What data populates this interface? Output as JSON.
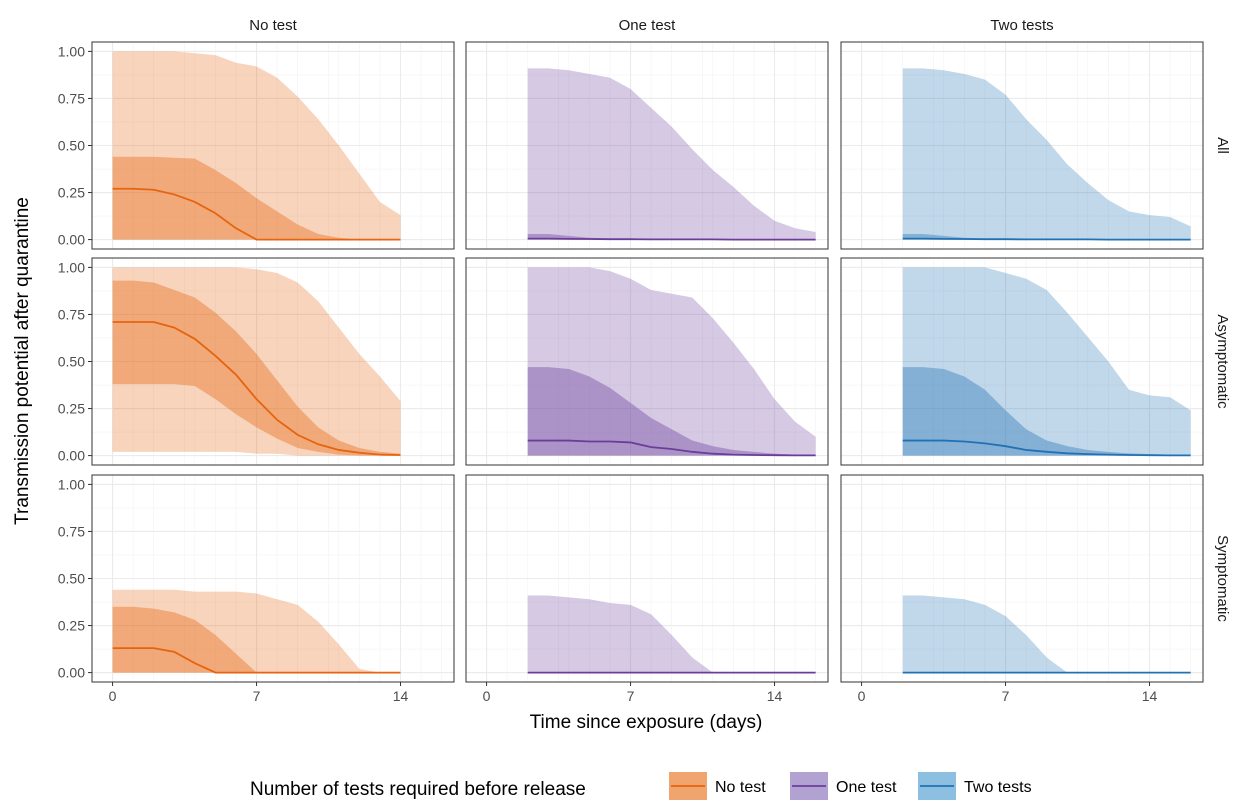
{
  "chart_data": {
    "type": "area",
    "xlabel": "Time since exposure (days)",
    "ylabel": "Transmission potential after quarantine",
    "xlim": [
      -1,
      16.6
    ],
    "ylim": [
      -0.05,
      1.05
    ],
    "x_ticks": [
      0,
      7,
      14
    ],
    "y_ticks": [
      0.0,
      0.25,
      0.5,
      0.75,
      1.0
    ],
    "y_tick_labels": [
      "0.00",
      "0.25",
      "0.50",
      "0.75",
      "1.00"
    ],
    "columns": [
      "No test",
      "One test",
      "Two tests"
    ],
    "rows": [
      "All",
      "Asymptomatic",
      "Symptomatic"
    ],
    "grid": true,
    "legend": {
      "title": "Number of tests required before release",
      "placement": "bottom",
      "entries": [
        {
          "label": "No test",
          "color": "#e6640e",
          "fill": "#f0a46e"
        },
        {
          "label": "One test",
          "color": "#6a3d9a",
          "fill": "#b2a2d2"
        },
        {
          "label": "Two tests",
          "color": "#2171b5",
          "fill": "#8cbfe0"
        }
      ]
    },
    "panels": [
      {
        "col": "No test",
        "row": "All",
        "x": [
          0,
          1,
          2,
          3,
          4,
          5,
          6,
          7,
          8,
          9,
          10,
          11,
          12,
          13,
          14
        ],
        "median": [
          0.27,
          0.27,
          0.265,
          0.24,
          0.2,
          0.14,
          0.06,
          0.0,
          0.0,
          0.0,
          0.0,
          0.0,
          0.0,
          0.0,
          0.0
        ],
        "inner_lo": [
          0,
          0,
          0,
          0,
          0,
          0,
          0,
          0,
          0,
          0,
          0,
          0,
          0,
          0,
          0
        ],
        "inner_hi": [
          0.44,
          0.44,
          0.44,
          0.435,
          0.43,
          0.37,
          0.3,
          0.22,
          0.15,
          0.08,
          0.03,
          0.01,
          0.0,
          0.0,
          0.0
        ],
        "outer_lo": [
          0,
          0,
          0,
          0,
          0,
          0,
          0,
          0,
          0,
          0,
          0,
          0,
          0,
          0,
          0
        ],
        "outer_hi": [
          1.0,
          1.0,
          1.0,
          1.0,
          0.99,
          0.98,
          0.94,
          0.92,
          0.86,
          0.76,
          0.64,
          0.5,
          0.35,
          0.2,
          0.13
        ]
      },
      {
        "col": "One test",
        "row": "All",
        "x": [
          2,
          3,
          4,
          5,
          6,
          7,
          8,
          9,
          10,
          11,
          12,
          13,
          14,
          15,
          16
        ],
        "median": [
          0.005,
          0.005,
          0.004,
          0.003,
          0.002,
          0.002,
          0.001,
          0.001,
          0.001,
          0.001,
          0.0,
          0.0,
          0.0,
          0.0,
          0.0
        ],
        "inner_lo": [
          0,
          0,
          0,
          0,
          0,
          0,
          0,
          0,
          0,
          0,
          0,
          0,
          0,
          0,
          0
        ],
        "inner_hi": [
          0.03,
          0.03,
          0.02,
          0.01,
          0.005,
          0.003,
          0.002,
          0.001,
          0.001,
          0.0,
          0.0,
          0.0,
          0.0,
          0.0,
          0.0
        ],
        "outer_lo": [
          0,
          0,
          0,
          0,
          0,
          0,
          0,
          0,
          0,
          0,
          0,
          0,
          0,
          0,
          0
        ],
        "outer_hi": [
          0.91,
          0.91,
          0.9,
          0.88,
          0.86,
          0.8,
          0.7,
          0.6,
          0.48,
          0.37,
          0.28,
          0.18,
          0.1,
          0.06,
          0.04
        ]
      },
      {
        "col": "Two tests",
        "row": "All",
        "x": [
          2,
          3,
          4,
          5,
          6,
          7,
          8,
          9,
          10,
          11,
          12,
          13,
          14,
          15,
          16
        ],
        "median": [
          0.005,
          0.005,
          0.004,
          0.003,
          0.002,
          0.002,
          0.001,
          0.001,
          0.001,
          0.001,
          0.0,
          0.0,
          0.0,
          0.0,
          0.0
        ],
        "inner_lo": [
          0,
          0,
          0,
          0,
          0,
          0,
          0,
          0,
          0,
          0,
          0,
          0,
          0,
          0,
          0
        ],
        "inner_hi": [
          0.03,
          0.03,
          0.02,
          0.01,
          0.005,
          0.003,
          0.002,
          0.001,
          0.001,
          0.0,
          0.0,
          0.0,
          0.0,
          0.0,
          0.0
        ],
        "outer_lo": [
          0,
          0,
          0,
          0,
          0,
          0,
          0,
          0,
          0,
          0,
          0,
          0,
          0,
          0,
          0
        ],
        "outer_hi": [
          0.91,
          0.91,
          0.9,
          0.88,
          0.85,
          0.77,
          0.64,
          0.53,
          0.4,
          0.3,
          0.21,
          0.15,
          0.13,
          0.12,
          0.07
        ]
      },
      {
        "col": "No test",
        "row": "Asymptomatic",
        "x": [
          0,
          1,
          2,
          3,
          4,
          5,
          6,
          7,
          8,
          9,
          10,
          11,
          12,
          13,
          14
        ],
        "median": [
          0.71,
          0.71,
          0.71,
          0.68,
          0.62,
          0.53,
          0.43,
          0.3,
          0.19,
          0.11,
          0.06,
          0.03,
          0.015,
          0.005,
          0.003
        ],
        "inner_lo": [
          0.38,
          0.38,
          0.38,
          0.38,
          0.37,
          0.3,
          0.22,
          0.15,
          0.09,
          0.04,
          0.02,
          0.005,
          0.0,
          0.0,
          0.0
        ],
        "inner_hi": [
          0.93,
          0.93,
          0.92,
          0.88,
          0.84,
          0.76,
          0.66,
          0.54,
          0.4,
          0.26,
          0.15,
          0.08,
          0.04,
          0.02,
          0.01
        ],
        "outer_lo": [
          0.02,
          0.02,
          0.02,
          0.02,
          0.02,
          0.02,
          0.02,
          0.01,
          0.01,
          0.0,
          0.0,
          0.0,
          0.0,
          0.0,
          0.0
        ],
        "outer_hi": [
          1.0,
          1.0,
          1.0,
          1.0,
          1.0,
          1.0,
          1.0,
          0.99,
          0.97,
          0.92,
          0.82,
          0.68,
          0.54,
          0.42,
          0.29
        ]
      },
      {
        "col": "One test",
        "row": "Asymptomatic",
        "x": [
          2,
          3,
          4,
          5,
          6,
          7,
          8,
          9,
          10,
          11,
          12,
          13,
          14,
          15,
          16
        ],
        "median": [
          0.08,
          0.08,
          0.08,
          0.075,
          0.075,
          0.07,
          0.045,
          0.035,
          0.02,
          0.01,
          0.005,
          0.003,
          0.002,
          0.001,
          0.001
        ],
        "inner_lo": [
          0,
          0,
          0,
          0,
          0,
          0,
          0,
          0,
          0,
          0,
          0,
          0,
          0,
          0,
          0
        ],
        "inner_hi": [
          0.47,
          0.47,
          0.46,
          0.42,
          0.36,
          0.28,
          0.2,
          0.14,
          0.08,
          0.05,
          0.03,
          0.02,
          0.01,
          0.005,
          0.003
        ],
        "outer_lo": [
          0,
          0,
          0,
          0,
          0,
          0,
          0,
          0,
          0,
          0,
          0,
          0,
          0,
          0,
          0
        ],
        "outer_hi": [
          1.0,
          1.0,
          1.0,
          1.0,
          0.98,
          0.94,
          0.88,
          0.86,
          0.84,
          0.73,
          0.6,
          0.46,
          0.3,
          0.18,
          0.1
        ]
      },
      {
        "col": "Two tests",
        "row": "Asymptomatic",
        "x": [
          2,
          3,
          4,
          5,
          6,
          7,
          8,
          9,
          10,
          11,
          12,
          13,
          14,
          15,
          16
        ],
        "median": [
          0.08,
          0.08,
          0.08,
          0.075,
          0.065,
          0.05,
          0.03,
          0.02,
          0.012,
          0.008,
          0.005,
          0.003,
          0.002,
          0.001,
          0.001
        ],
        "inner_lo": [
          0,
          0,
          0,
          0,
          0,
          0,
          0,
          0,
          0,
          0,
          0,
          0,
          0,
          0,
          0
        ],
        "inner_hi": [
          0.47,
          0.47,
          0.46,
          0.42,
          0.35,
          0.24,
          0.14,
          0.08,
          0.05,
          0.03,
          0.02,
          0.012,
          0.008,
          0.005,
          0.003
        ],
        "outer_lo": [
          0,
          0,
          0,
          0,
          0,
          0,
          0,
          0,
          0,
          0,
          0,
          0,
          0,
          0,
          0
        ],
        "outer_hi": [
          1.0,
          1.0,
          1.0,
          1.0,
          1.0,
          0.97,
          0.94,
          0.88,
          0.76,
          0.63,
          0.5,
          0.35,
          0.32,
          0.31,
          0.24
        ]
      },
      {
        "col": "No test",
        "row": "Symptomatic",
        "x": [
          0,
          1,
          2,
          3,
          4,
          5,
          6,
          7,
          8,
          9,
          10,
          11,
          12,
          13,
          14
        ],
        "median": [
          0.13,
          0.13,
          0.13,
          0.11,
          0.05,
          0.0,
          0.0,
          0.0,
          0.0,
          0.0,
          0.0,
          0.0,
          0.0,
          0.0,
          0.0
        ],
        "inner_lo": [
          0,
          0,
          0,
          0,
          0,
          0,
          0,
          0,
          0,
          0,
          0,
          0,
          0,
          0,
          0
        ],
        "inner_hi": [
          0.35,
          0.35,
          0.34,
          0.32,
          0.28,
          0.2,
          0.1,
          0.0,
          0.0,
          0.0,
          0.0,
          0.0,
          0.0,
          0.0,
          0.0
        ],
        "outer_lo": [
          0,
          0,
          0,
          0,
          0,
          0,
          0,
          0,
          0,
          0,
          0,
          0,
          0,
          0,
          0
        ],
        "outer_hi": [
          0.44,
          0.44,
          0.44,
          0.44,
          0.43,
          0.43,
          0.43,
          0.42,
          0.39,
          0.36,
          0.27,
          0.15,
          0.02,
          0.0,
          0.0
        ]
      },
      {
        "col": "One test",
        "row": "Symptomatic",
        "x": [
          2,
          3,
          4,
          5,
          6,
          7,
          8,
          9,
          10,
          11,
          12,
          13,
          14,
          15,
          16
        ],
        "median": [
          0,
          0,
          0,
          0,
          0,
          0,
          0,
          0,
          0,
          0,
          0,
          0,
          0,
          0,
          0
        ],
        "inner_lo": [
          0,
          0,
          0,
          0,
          0,
          0,
          0,
          0,
          0,
          0,
          0,
          0,
          0,
          0,
          0
        ],
        "inner_hi": [
          0,
          0,
          0,
          0,
          0,
          0,
          0,
          0,
          0,
          0,
          0,
          0,
          0,
          0,
          0
        ],
        "outer_lo": [
          0,
          0,
          0,
          0,
          0,
          0,
          0,
          0,
          0,
          0,
          0,
          0,
          0,
          0,
          0
        ],
        "outer_hi": [
          0.41,
          0.41,
          0.4,
          0.39,
          0.37,
          0.36,
          0.31,
          0.2,
          0.08,
          0.0,
          0.0,
          0.0,
          0.0,
          0.0,
          0.0
        ]
      },
      {
        "col": "Two tests",
        "row": "Symptomatic",
        "x": [
          2,
          3,
          4,
          5,
          6,
          7,
          8,
          9,
          10,
          11,
          12,
          13,
          14,
          15,
          16
        ],
        "median": [
          0,
          0,
          0,
          0,
          0,
          0,
          0,
          0,
          0,
          0,
          0,
          0,
          0,
          0,
          0
        ],
        "inner_lo": [
          0,
          0,
          0,
          0,
          0,
          0,
          0,
          0,
          0,
          0,
          0,
          0,
          0,
          0,
          0
        ],
        "inner_hi": [
          0,
          0,
          0,
          0,
          0,
          0,
          0,
          0,
          0,
          0,
          0,
          0,
          0,
          0,
          0
        ],
        "outer_lo": [
          0,
          0,
          0,
          0,
          0,
          0,
          0,
          0,
          0,
          0,
          0,
          0,
          0,
          0,
          0
        ],
        "outer_hi": [
          0.41,
          0.41,
          0.4,
          0.39,
          0.36,
          0.3,
          0.2,
          0.08,
          0.0,
          0.0,
          0.0,
          0.0,
          0.0,
          0.0,
          0.0
        ]
      }
    ]
  }
}
